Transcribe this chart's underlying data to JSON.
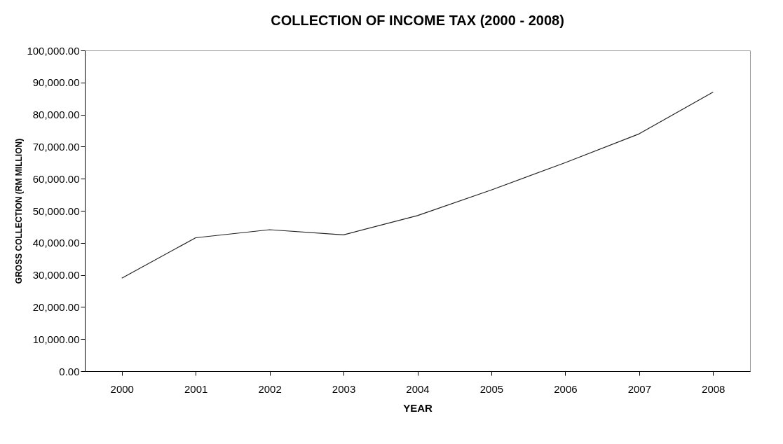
{
  "chart_data": {
    "type": "line",
    "title": "COLLECTION OF INCOME TAX (2000 - 2008)",
    "xlabel": "YEAR",
    "ylabel": "GROSS COLLECTION (RM MILLION)",
    "categories": [
      "2000",
      "2001",
      "2002",
      "2003",
      "2004",
      "2005",
      "2006",
      "2007",
      "2008"
    ],
    "series": [
      {
        "color": "#222222",
        "values": [
          29000,
          41600,
          44100,
          42500,
          48500,
          56500,
          65000,
          74000,
          87000
        ]
      }
    ],
    "ylim": [
      0,
      100000
    ],
    "yticks": [
      {
        "value": 0,
        "label": "0.00"
      },
      {
        "value": 10000,
        "label": "10,000.00"
      },
      {
        "value": 20000,
        "label": "20,000.00"
      },
      {
        "value": 30000,
        "label": "30,000.00"
      },
      {
        "value": 40000,
        "label": "40,000.00"
      },
      {
        "value": 50000,
        "label": "50,000.00"
      },
      {
        "value": 60000,
        "label": "60,000.00"
      },
      {
        "value": 70000,
        "label": "70,000.00"
      },
      {
        "value": 80000,
        "label": "80,000.00"
      },
      {
        "value": 90000,
        "label": "90,000.00"
      },
      {
        "value": 100000,
        "label": "100,000.00"
      }
    ],
    "grid": false,
    "marker": "none",
    "line_style": "solid"
  }
}
